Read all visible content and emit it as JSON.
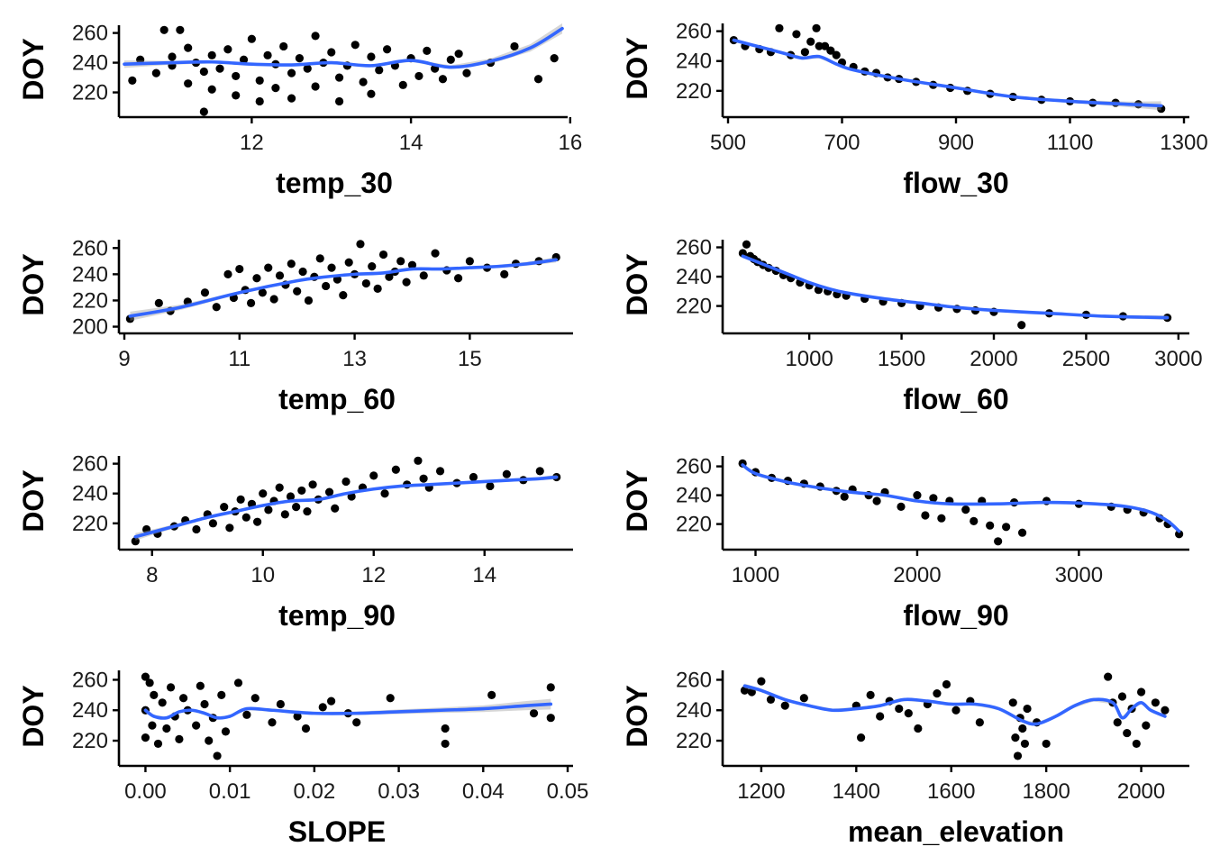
{
  "chart_data": [
    {
      "type": "scatter",
      "xlabel": "temp_30",
      "ylabel": "DOY",
      "xlim": [
        10.4,
        15.9
      ],
      "ylim": [
        207,
        264
      ],
      "xticks": [
        12,
        14,
        16
      ],
      "xtick_labels": [
        "12",
        "14",
        "16"
      ],
      "yticks": [
        220,
        240,
        260
      ],
      "ytick_labels": [
        "220",
        "240",
        "260"
      ],
      "x": [
        10.5,
        10.6,
        10.8,
        10.9,
        11.0,
        11.0,
        11.1,
        11.2,
        11.2,
        11.3,
        11.4,
        11.4,
        11.5,
        11.5,
        11.6,
        11.7,
        11.8,
        11.8,
        11.9,
        12.0,
        12.1,
        12.1,
        12.2,
        12.3,
        12.3,
        12.4,
        12.5,
        12.5,
        12.6,
        12.7,
        12.8,
        12.8,
        12.9,
        13.0,
        13.1,
        13.1,
        13.2,
        13.3,
        13.4,
        13.5,
        13.5,
        13.6,
        13.7,
        13.8,
        13.9,
        14.0,
        14.1,
        14.2,
        14.3,
        14.4,
        14.5,
        14.6,
        14.7,
        15.0,
        15.3,
        15.6,
        15.8
      ],
      "y": [
        228,
        242,
        233,
        262,
        244,
        238,
        262,
        250,
        226,
        240,
        207,
        234,
        245,
        222,
        236,
        249,
        231,
        218,
        242,
        256,
        228,
        214,
        245,
        239,
        223,
        251,
        233,
        216,
        243,
        236,
        258,
        224,
        240,
        247,
        230,
        214,
        238,
        252,
        227,
        244,
        219,
        235,
        249,
        238,
        225,
        243,
        231,
        248,
        236,
        229,
        242,
        246,
        233,
        240,
        251,
        229,
        243
      ],
      "smooth": {
        "x": [
          10.4,
          11.0,
          11.5,
          12.0,
          12.5,
          13.0,
          13.5,
          14.0,
          14.5,
          15.0,
          15.5,
          15.9
        ],
        "y": [
          239,
          240,
          240.5,
          239,
          238.5,
          240,
          238,
          241.5,
          237,
          241,
          250,
          263
        ]
      },
      "band_halfwidth": [
        2.5,
        1.3,
        1.0,
        0.8,
        0.8,
        0.8,
        0.8,
        0.9,
        1.2,
        1.8,
        2.5,
        3.5
      ]
    },
    {
      "type": "scatter",
      "xlabel": "flow_30",
      "ylabel": "DOY",
      "xlim": [
        500,
        1300
      ],
      "ylim": [
        206,
        264
      ],
      "xticks": [
        500,
        700,
        900,
        1100,
        1300
      ],
      "xtick_labels": [
        "500",
        "700",
        "900",
        "1100",
        "1300"
      ],
      "yticks": [
        220,
        240,
        260
      ],
      "ytick_labels": [
        "220",
        "240",
        "260"
      ],
      "x": [
        510,
        530,
        555,
        575,
        590,
        610,
        620,
        635,
        645,
        655,
        660,
        670,
        680,
        690,
        700,
        720,
        740,
        760,
        780,
        800,
        830,
        860,
        890,
        920,
        960,
        1000,
        1050,
        1100,
        1140,
        1180,
        1220,
        1260
      ],
      "y": [
        254,
        250,
        248,
        246,
        262,
        244,
        258,
        246,
        253,
        262,
        250,
        250,
        247,
        244,
        239,
        236,
        233,
        232,
        229,
        228,
        226,
        224,
        222,
        220,
        218,
        216,
        214,
        213,
        212,
        212,
        211,
        208
      ],
      "smooth": {
        "x": [
          510,
          550,
          600,
          630,
          660,
          690,
          720,
          800,
          900,
          1000,
          1100,
          1200,
          1260
        ],
        "y": [
          254,
          250,
          245,
          242,
          243,
          238,
          234,
          228,
          222,
          216,
          213,
          211,
          210
        ]
      },
      "band_halfwidth": [
        1.2,
        1.0,
        1.0,
        1.2,
        1.2,
        1.0,
        0.8,
        0.8,
        0.8,
        0.9,
        1.0,
        1.8,
        3.0
      ]
    },
    {
      "type": "scatter",
      "xlabel": "temp_60",
      "ylabel": "DOY",
      "xlim": [
        9.0,
        16.7
      ],
      "ylim": [
        199,
        265
      ],
      "xticks": [
        9,
        11,
        13,
        15
      ],
      "xtick_labels": [
        "9",
        "11",
        "13",
        "15"
      ],
      "yticks": [
        200,
        220,
        240,
        260
      ],
      "ytick_labels": [
        "200",
        "220",
        "240",
        "260"
      ],
      "x": [
        9.1,
        9.6,
        9.8,
        10.1,
        10.4,
        10.6,
        10.8,
        10.9,
        11.0,
        11.1,
        11.2,
        11.3,
        11.4,
        11.5,
        11.6,
        11.7,
        11.8,
        11.9,
        12.0,
        12.1,
        12.2,
        12.3,
        12.4,
        12.5,
        12.6,
        12.7,
        12.8,
        12.9,
        13.0,
        13.1,
        13.2,
        13.3,
        13.4,
        13.5,
        13.6,
        13.7,
        13.8,
        13.9,
        14.0,
        14.2,
        14.4,
        14.6,
        14.8,
        15.0,
        15.3,
        15.6,
        15.8,
        16.2,
        16.5
      ],
      "y": [
        206,
        218,
        212,
        219,
        226,
        215,
        240,
        222,
        244,
        228,
        218,
        237,
        226,
        245,
        221,
        239,
        232,
        248,
        227,
        242,
        220,
        238,
        252,
        231,
        245,
        236,
        224,
        249,
        240,
        263,
        233,
        246,
        229,
        255,
        238,
        242,
        250,
        234,
        247,
        239,
        256,
        243,
        237,
        250,
        245,
        240,
        248,
        250,
        253
      ],
      "smooth": {
        "x": [
          9.1,
          10.0,
          11.0,
          12.0,
          12.5,
          13.0,
          13.5,
          14.0,
          14.5,
          15.0,
          15.5,
          16.0,
          16.5
        ],
        "y": [
          208,
          215,
          226,
          235,
          238,
          240,
          241,
          244,
          244,
          245,
          246,
          248,
          251
        ]
      },
      "band_halfwidth": [
        3.5,
        2.0,
        1.1,
        0.8,
        0.8,
        0.8,
        0.8,
        0.8,
        0.8,
        1.0,
        1.2,
        1.5,
        2.0
      ]
    },
    {
      "type": "scatter",
      "xlabel": "flow_60",
      "ylabel": "DOY",
      "xlim": [
        560,
        3030
      ],
      "ylim": [
        205,
        264
      ],
      "xticks": [
        1000,
        1500,
        2000,
        2500,
        3000
      ],
      "xtick_labels": [
        "1000",
        "1500",
        "2000",
        "2500",
        "3000"
      ],
      "yticks": [
        220,
        240,
        260
      ],
      "ytick_labels": [
        "220",
        "240",
        "260"
      ],
      "x": [
        640,
        660,
        680,
        700,
        720,
        750,
        780,
        820,
        860,
        900,
        950,
        1000,
        1050,
        1100,
        1150,
        1200,
        1300,
        1400,
        1500,
        1600,
        1700,
        1800,
        1900,
        2000,
        2150,
        2300,
        2500,
        2700,
        2940
      ],
      "y": [
        256,
        262,
        254,
        252,
        250,
        248,
        246,
        244,
        241,
        239,
        236,
        234,
        231,
        230,
        228,
        227,
        225,
        223,
        222,
        220,
        219,
        218,
        217,
        216,
        207,
        215,
        214,
        213,
        212
      ],
      "smooth": {
        "x": [
          640,
          700,
          800,
          900,
          1000,
          1100,
          1200,
          1400,
          1600,
          1800,
          2000,
          2300,
          2600,
          2940
        ],
        "y": [
          254,
          251,
          246,
          241,
          236,
          232,
          229,
          225,
          222,
          219,
          217,
          215,
          213,
          212
        ]
      },
      "band_halfwidth": [
        1.2,
        1.0,
        0.8,
        0.8,
        0.8,
        0.8,
        0.8,
        0.8,
        0.8,
        0.8,
        0.8,
        0.9,
        1.0,
        1.5
      ]
    },
    {
      "type": "scatter",
      "xlabel": "temp_90",
      "ylabel": "DOY",
      "xlim": [
        7.5,
        15.5
      ],
      "ylim": [
        206,
        264
      ],
      "xticks": [
        8,
        10,
        12,
        14
      ],
      "xtick_labels": [
        "8",
        "10",
        "12",
        "14"
      ],
      "yticks": [
        220,
        240,
        260
      ],
      "ytick_labels": [
        "220",
        "240",
        "260"
      ],
      "x": [
        7.7,
        7.9,
        8.1,
        8.4,
        8.6,
        8.8,
        9.0,
        9.1,
        9.3,
        9.4,
        9.5,
        9.6,
        9.7,
        9.8,
        9.9,
        10.0,
        10.1,
        10.2,
        10.3,
        10.4,
        10.5,
        10.6,
        10.7,
        10.8,
        10.9,
        11.0,
        11.2,
        11.3,
        11.5,
        11.6,
        11.8,
        12.0,
        12.2,
        12.4,
        12.6,
        12.8,
        12.9,
        13.0,
        13.2,
        13.5,
        13.8,
        14.1,
        14.4,
        14.7,
        15.0,
        15.3
      ],
      "y": [
        208,
        216,
        213,
        218,
        222,
        216,
        226,
        220,
        231,
        217,
        228,
        236,
        224,
        233,
        221,
        240,
        229,
        235,
        244,
        226,
        238,
        231,
        242,
        228,
        246,
        236,
        241,
        230,
        248,
        238,
        244,
        252,
        240,
        256,
        246,
        262,
        250,
        244,
        255,
        247,
        251,
        245,
        253,
        249,
        255,
        251
      ],
      "smooth": {
        "x": [
          7.7,
          8.0,
          8.5,
          9.0,
          9.5,
          10.0,
          10.5,
          11.0,
          11.5,
          12.0,
          12.5,
          13.0,
          13.5,
          14.0,
          14.5,
          15.0,
          15.3
        ],
        "y": [
          211,
          214,
          219,
          224,
          228,
          232,
          235,
          236,
          240,
          243,
          245,
          246,
          247,
          248,
          249,
          250,
          251
        ]
      },
      "band_halfwidth": [
        2.5,
        1.8,
        1.2,
        1.0,
        0.8,
        0.8,
        0.8,
        0.8,
        0.8,
        0.8,
        0.8,
        0.8,
        0.8,
        0.9,
        1.0,
        1.2,
        1.5
      ]
    },
    {
      "type": "scatter",
      "xlabel": "flow_90",
      "ylabel": "DOY",
      "xlim": [
        830,
        3650
      ],
      "ylim": [
        206,
        266
      ],
      "xticks": [
        1000,
        2000,
        3000
      ],
      "xtick_labels": [
        "1000",
        "2000",
        "3000"
      ],
      "yticks": [
        220,
        240,
        260
      ],
      "ytick_labels": [
        "220",
        "240",
        "260"
      ],
      "x": [
        920,
        1000,
        1100,
        1200,
        1300,
        1400,
        1500,
        1550,
        1600,
        1700,
        1750,
        1800,
        1900,
        2000,
        2050,
        2100,
        2150,
        2200,
        2300,
        2350,
        2400,
        2450,
        2500,
        2550,
        2600,
        2650,
        2800,
        3000,
        3200,
        3300,
        3400,
        3500,
        3550,
        3620
      ],
      "y": [
        262,
        256,
        252,
        250,
        248,
        246,
        243,
        239,
        244,
        240,
        236,
        242,
        232,
        240,
        226,
        238,
        224,
        236,
        230,
        222,
        236,
        219,
        208,
        218,
        235,
        214,
        236,
        234,
        232,
        230,
        228,
        224,
        220,
        213
      ],
      "smooth": {
        "x": [
          920,
          1000,
          1200,
          1400,
          1600,
          1800,
          2000,
          2200,
          2500,
          2800,
          3100,
          3300,
          3450,
          3550,
          3620
        ],
        "y": [
          261,
          255,
          249,
          245,
          242,
          240,
          236,
          234,
          234,
          235,
          234,
          232,
          228,
          222,
          215
        ]
      },
      "band_halfwidth": [
        1.2,
        1.0,
        0.8,
        0.8,
        0.8,
        0.8,
        0.8,
        0.8,
        0.8,
        0.8,
        0.8,
        0.9,
        1.0,
        1.2,
        1.5
      ]
    },
    {
      "type": "scatter",
      "xlabel": "SLOPE",
      "ylabel": "DOY",
      "xlim": [
        -0.0025,
        0.05
      ],
      "ylim": [
        207,
        265
      ],
      "xticks": [
        0.0,
        0.01,
        0.02,
        0.03,
        0.04,
        0.05
      ],
      "xtick_labels": [
        "0.00",
        "0.01",
        "0.02",
        "0.03",
        "0.04",
        "0.05"
      ],
      "yticks": [
        220,
        240,
        260
      ],
      "ytick_labels": [
        "220",
        "240",
        "260"
      ],
      "x": [
        0.0,
        0.0,
        0.0,
        0.0005,
        0.0008,
        0.001,
        0.0015,
        0.002,
        0.0025,
        0.003,
        0.0035,
        0.004,
        0.0045,
        0.005,
        0.006,
        0.0065,
        0.007,
        0.0075,
        0.008,
        0.0085,
        0.009,
        0.0095,
        0.011,
        0.012,
        0.013,
        0.015,
        0.016,
        0.018,
        0.019,
        0.021,
        0.022,
        0.024,
        0.025,
        0.029,
        0.0355,
        0.0355,
        0.041,
        0.046,
        0.048,
        0.048
      ],
      "y": [
        262,
        240,
        222,
        258,
        230,
        250,
        218,
        245,
        228,
        255,
        236,
        221,
        248,
        240,
        230,
        256,
        244,
        220,
        235,
        210,
        250,
        226,
        258,
        237,
        248,
        232,
        244,
        236,
        228,
        242,
        246,
        238,
        232,
        248,
        218,
        228,
        250,
        238,
        255,
        235
      ],
      "smooth": {
        "x": [
          0.0,
          0.001,
          0.0025,
          0.004,
          0.0055,
          0.007,
          0.0085,
          0.01,
          0.012,
          0.015,
          0.02,
          0.025,
          0.03,
          0.035,
          0.04,
          0.045,
          0.048
        ],
        "y": [
          240,
          236,
          235,
          239,
          240,
          238,
          235,
          236,
          241,
          240,
          238,
          238,
          239,
          240,
          241,
          243,
          244
        ]
      },
      "band_halfwidth": [
        1.5,
        1.0,
        0.8,
        0.8,
        0.8,
        0.8,
        0.8,
        0.8,
        0.9,
        1.0,
        1.0,
        1.2,
        1.5,
        1.8,
        2.2,
        3.0,
        3.5
      ]
    },
    {
      "type": "scatter",
      "xlabel": "mean_elevation",
      "ylabel": "DOY",
      "xlim": [
        1130,
        2090
      ],
      "ylim": [
        207,
        265
      ],
      "xticks": [
        1200,
        1400,
        1600,
        1800,
        2000
      ],
      "xtick_labels": [
        "1200",
        "1400",
        "1600",
        "1800",
        "2000"
      ],
      "yticks": [
        220,
        240,
        260
      ],
      "ytick_labels": [
        "220",
        "240",
        "260"
      ],
      "x": [
        1165,
        1180,
        1200,
        1220,
        1250,
        1290,
        1400,
        1410,
        1430,
        1450,
        1470,
        1490,
        1510,
        1530,
        1550,
        1570,
        1590,
        1610,
        1640,
        1660,
        1730,
        1735,
        1740,
        1745,
        1750,
        1755,
        1760,
        1780,
        1800,
        1930,
        1940,
        1950,
        1960,
        1970,
        1980,
        1990,
        2000,
        2010,
        2030,
        2050
      ],
      "y": [
        253,
        252,
        259,
        247,
        243,
        248,
        243,
        222,
        250,
        236,
        246,
        241,
        238,
        228,
        244,
        251,
        257,
        240,
        246,
        232,
        245,
        222,
        210,
        235,
        228,
        218,
        241,
        232,
        218,
        262,
        245,
        232,
        249,
        225,
        241,
        218,
        252,
        230,
        245,
        240
      ],
      "smooth": {
        "x": [
          1165,
          1200,
          1250,
          1300,
          1350,
          1400,
          1450,
          1500,
          1550,
          1600,
          1650,
          1700,
          1750,
          1780,
          1820,
          1860,
          1900,
          1940,
          1960,
          1980,
          2000,
          2020,
          2050
        ],
        "y": [
          256,
          253,
          247,
          243,
          240,
          241,
          243,
          247,
          246,
          244,
          244,
          241,
          233,
          231,
          236,
          243,
          247,
          245,
          235,
          241,
          245,
          240,
          236
        ]
      },
      "band_halfwidth": [
        1.5,
        1.2,
        1.0,
        1.0,
        1.0,
        1.0,
        0.9,
        0.9,
        0.9,
        0.9,
        0.9,
        0.9,
        0.9,
        0.9,
        1.0,
        1.2,
        1.2,
        1.0,
        1.0,
        1.0,
        1.0,
        1.0,
        1.2
      ]
    }
  ]
}
